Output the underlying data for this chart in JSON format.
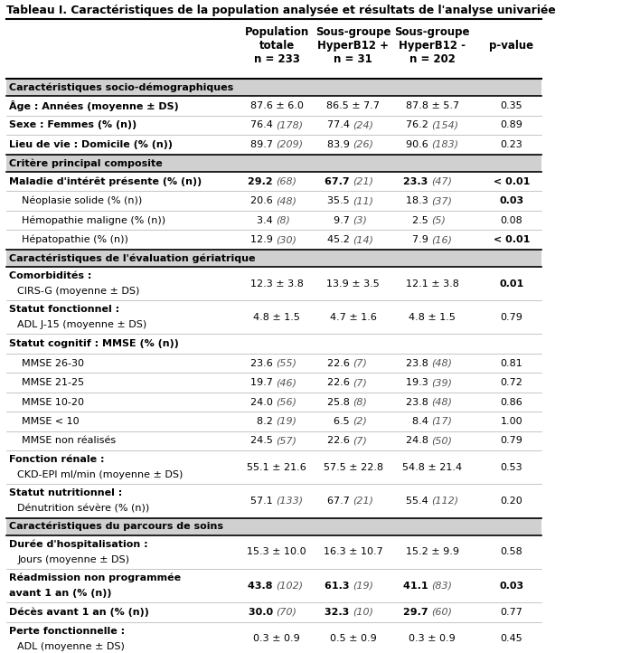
{
  "title": "Tableau I. Caractéristiques de la population analysée et résultats de l'analyse univariée",
  "headers": [
    "Population\ntotale\nn = 233",
    "Sous-groupe\nHyperB12 +\nn = 31",
    "Sous-groupe\nHyperB12 -\nn = 202",
    "p-value"
  ],
  "data_col_centers": [
    0.505,
    0.645,
    0.79,
    0.935
  ],
  "rows": [
    {
      "label": "Caractéristiques socio-démographiques",
      "type": "section",
      "values": [
        "",
        "",
        "",
        ""
      ]
    },
    {
      "label": "Âge : Années (moyenne ± DS)",
      "type": "data_bold_label",
      "values": [
        "87.6 ± 6.0",
        "86.5 ± 7.7",
        "87.8 ± 5.7",
        "0.35"
      ],
      "italic_n": false
    },
    {
      "label": "Sexe : Femmes (% (n))",
      "type": "data_bold_label",
      "values": [
        "76.4 (178)",
        "77.4 (24)",
        "76.2 (154)",
        "0.89"
      ],
      "italic_n": true
    },
    {
      "label": "Lieu de vie : Domicile (% (n))",
      "type": "data_bold_label",
      "values": [
        "89.7 (209)",
        "83.9 (26)",
        "90.6 (183)",
        "0.23"
      ],
      "italic_n": true
    },
    {
      "label": "Critère principal composite",
      "type": "section",
      "values": [
        "",
        "",
        "",
        ""
      ]
    },
    {
      "label": "Maladie d'intérêt présente (% (n))",
      "type": "data_allbold",
      "values": [
        "29.2 (68)",
        "67.7 (21)",
        "23.3 (47)",
        "< 0.01"
      ],
      "pvalue_bold": true,
      "italic_n": true
    },
    {
      "label": "Néoplasie solide (% (n))",
      "type": "data_indent",
      "values": [
        "20.6 (48)",
        "35.5 (11)",
        "18.3 (37)",
        "0.03"
      ],
      "pvalue_bold": true,
      "italic_n": true
    },
    {
      "label": "Hémopathie maligne (% (n))",
      "type": "data_indent",
      "values": [
        "3.4 (8)",
        "9.7 (3)",
        "2.5 (5)",
        "0.08"
      ],
      "pvalue_bold": false,
      "italic_n": true
    },
    {
      "label": "Hépatopathie (% (n))",
      "type": "data_indent",
      "values": [
        "12.9 (30)",
        "45.2 (14)",
        "7.9 (16)",
        "< 0.01"
      ],
      "pvalue_bold": true,
      "italic_n": true
    },
    {
      "label": "Caractéristiques de l'évaluation gériatrique",
      "type": "section",
      "values": [
        "",
        "",
        "",
        ""
      ]
    },
    {
      "label": "Comorbidités :\nCIRS-G (moyenne ± DS)",
      "type": "data_bold_label_2line",
      "values": [
        "12.3 ± 3.8",
        "13.9 ± 3.5",
        "12.1 ± 3.8",
        "0.01"
      ],
      "pvalue_bold": true,
      "italic_n": false
    },
    {
      "label": "Statut fonctionnel :\nADL J-15 (moyenne ± DS)",
      "type": "data_bold_label_2line",
      "values": [
        "4.8 ± 1.5",
        "4.7 ± 1.6",
        "4.8 ± 1.5",
        "0.79"
      ],
      "pvalue_bold": false,
      "italic_n": false
    },
    {
      "label": "Statut cognitif : MMSE (% (n))",
      "type": "data_bold_label",
      "values": [
        "",
        "",
        "",
        ""
      ],
      "italic_n": false
    },
    {
      "label": "MMSE 26-30",
      "type": "data_indent",
      "values": [
        "23.6 (55)",
        "22.6 (7)",
        "23.8 (48)",
        "0.81"
      ],
      "pvalue_bold": false,
      "italic_n": true
    },
    {
      "label": "MMSE 21-25",
      "type": "data_indent",
      "values": [
        "19.7 (46)",
        "22.6 (7)",
        "19.3 (39)",
        "0.72"
      ],
      "pvalue_bold": false,
      "italic_n": true
    },
    {
      "label": "MMSE 10-20",
      "type": "data_indent",
      "values": [
        "24.0 (56)",
        "25.8 (8)",
        "23.8 (48)",
        "0.86"
      ],
      "pvalue_bold": false,
      "italic_n": true
    },
    {
      "label": "MMSE < 10",
      "type": "data_indent",
      "values": [
        "8.2 (19)",
        "6.5 (2)",
        "8.4 (17)",
        "1.00"
      ],
      "pvalue_bold": false,
      "italic_n": true
    },
    {
      "label": "MMSE non réalisés",
      "type": "data_indent",
      "values": [
        "24.5 (57)",
        "22.6 (7)",
        "24.8 (50)",
        "0.79"
      ],
      "pvalue_bold": false,
      "italic_n": true
    },
    {
      "label": "Fonction rénale :\nCKD-EPI ml/min (moyenne ± DS)",
      "type": "data_bold_label_2line",
      "values": [
        "55.1 ± 21.6",
        "57.5 ± 22.8",
        "54.8 ± 21.4",
        "0.53"
      ],
      "pvalue_bold": false,
      "italic_n": false
    },
    {
      "label": "Statut nutritionnel :\nDénutrition sévère (% (n))",
      "type": "data_bold_label_2line",
      "values": [
        "57.1 (133)",
        "67.7 (21)",
        "55.4 (112)",
        "0.20"
      ],
      "pvalue_bold": false,
      "italic_n": true
    },
    {
      "label": "Caractéristiques du parcours de soins",
      "type": "section",
      "values": [
        "",
        "",
        "",
        ""
      ]
    },
    {
      "label": "Durée d'hospitalisation :\nJours (moyenne ± DS)",
      "type": "data_bold_label_2line",
      "values": [
        "15.3 ± 10.0",
        "16.3 ± 10.7",
        "15.2 ± 9.9",
        "0.58"
      ],
      "pvalue_bold": false,
      "italic_n": false
    },
    {
      "label": "Réadmission non programmée\navant 1 an (% (n))",
      "type": "data_bold_2line",
      "values": [
        "43.8 (102)",
        "61.3 (19)",
        "41.1 (83)",
        "0.03"
      ],
      "pvalue_bold": true,
      "italic_n": true
    },
    {
      "label": "Décès avant 1 an (% (n))",
      "type": "data_allbold",
      "values": [
        "30.0 (70)",
        "32.3 (10)",
        "29.7 (60)",
        "0.77"
      ],
      "pvalue_bold": false,
      "italic_n": true
    },
    {
      "label": "Perte fonctionnelle :\nADL (moyenne ± DS)",
      "type": "data_bold_label_2line",
      "values": [
        "0.3 ± 0.9",
        "0.5 ± 0.9",
        "0.3 ± 0.9",
        "0.45"
      ],
      "pvalue_bold": false,
      "italic_n": false
    }
  ],
  "bg_color": "#ffffff",
  "text_color": "#000000",
  "font_size": 8.0,
  "header_font_size": 8.5
}
